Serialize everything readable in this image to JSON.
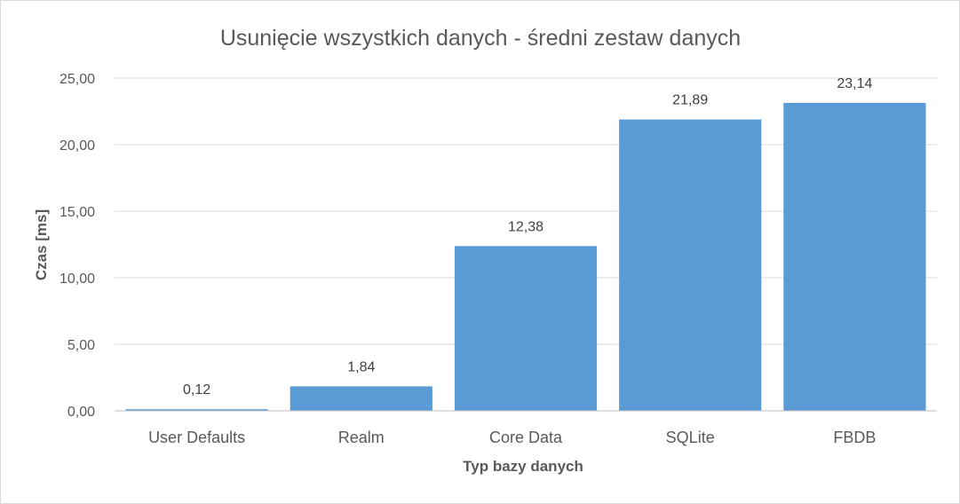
{
  "chart_data": {
    "type": "bar",
    "title": "Usunięcie wszystkich danych - średni zestaw danych",
    "xlabel": "Typ bazy danych",
    "ylabel": "Czas [ms]",
    "categories": [
      "User Defaults",
      "Realm",
      "Core Data",
      "SQLite",
      "FBDB"
    ],
    "values": [
      0.12,
      1.84,
      12.38,
      21.89,
      23.14
    ],
    "data_labels": [
      "0,12",
      "1,84",
      "12,38",
      "21,89",
      "23,14"
    ],
    "ylim": [
      0,
      25
    ],
    "yticks": [
      0,
      5,
      10,
      15,
      20,
      25
    ],
    "ytick_labels": [
      "0,00",
      "5,00",
      "10,00",
      "15,00",
      "20,00",
      "25,00"
    ],
    "grid": true,
    "legend": "none",
    "bar_color": "#5b9bd5"
  }
}
